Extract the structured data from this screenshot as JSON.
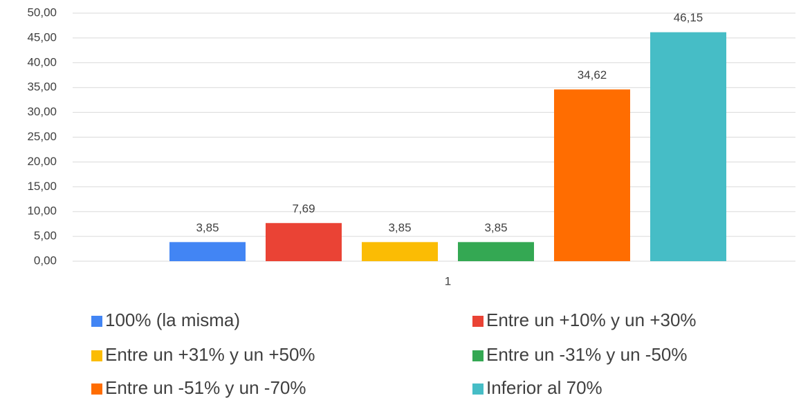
{
  "chart_data": {
    "type": "bar",
    "categories": [
      "1"
    ],
    "series": [
      {
        "name": "100% (la misma)",
        "color": "#4285f4",
        "values": [
          3.85
        ],
        "value_labels": [
          "3,85"
        ]
      },
      {
        "name": "Entre un +10% y un +30%",
        "color": "#ea4335",
        "values": [
          7.69
        ],
        "value_labels": [
          "7,69"
        ]
      },
      {
        "name": "Entre un +31% y un +50%",
        "color": "#fbbc04",
        "values": [
          3.85
        ],
        "value_labels": [
          "3,85"
        ]
      },
      {
        "name": "Entre un -31% y un -50%",
        "color": "#34a853",
        "values": [
          3.85
        ],
        "value_labels": [
          "3,85"
        ]
      },
      {
        "name": "Entre un -51% y un -70%",
        "color": "#ff6d01",
        "values": [
          34.62
        ],
        "value_labels": [
          "34,62"
        ]
      },
      {
        "name": "Inferior al 70%",
        "color": "#46bdc6",
        "values": [
          46.15
        ],
        "value_labels": [
          "46,15"
        ]
      }
    ],
    "ylim": [
      0,
      50
    ],
    "yticks": [
      {
        "value": 0,
        "label": "0,00"
      },
      {
        "value": 5,
        "label": "5,00"
      },
      {
        "value": 10,
        "label": "10,00"
      },
      {
        "value": 15,
        "label": "15,00"
      },
      {
        "value": 20,
        "label": "20,00"
      },
      {
        "value": 25,
        "label": "25,00"
      },
      {
        "value": 30,
        "label": "30,00"
      },
      {
        "value": 35,
        "label": "35,00"
      },
      {
        "value": 40,
        "label": "40,00"
      },
      {
        "value": 45,
        "label": "45,00"
      },
      {
        "value": 50,
        "label": "50,00"
      }
    ],
    "grid": true,
    "legend": "bottom"
  }
}
